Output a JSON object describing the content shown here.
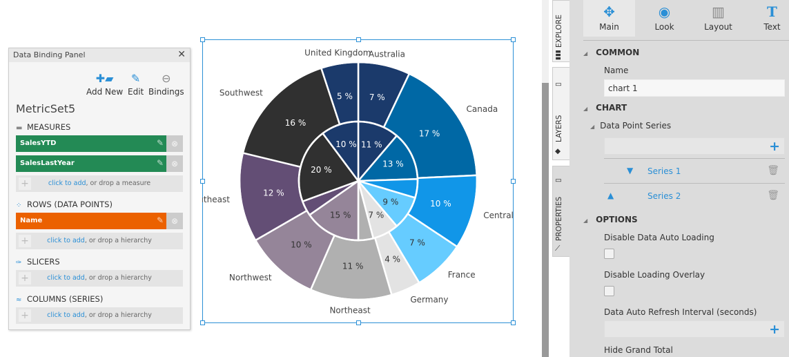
{
  "binding_panel": {
    "title": "Data Binding Panel",
    "toolbar": {
      "add_new": "Add New",
      "edit": "Edit",
      "bindings": "Bindings"
    },
    "metricset": "MetricSet5",
    "measures_label": "MEASURES",
    "measures": [
      "SalesYTD",
      "SalesLastYear"
    ],
    "rows_label": "ROWS (DATA POINTS)",
    "rows": [
      "Name"
    ],
    "slicers_label": "SLICERS",
    "columns_label": "COLUMNS (SERIES)",
    "drop_link": "click to add",
    "drop_measure": ", or drop a measure",
    "drop_hierarchy": ", or drop a hierarchy",
    "colors": {
      "measure": "#238a55",
      "row": "#eb6100"
    }
  },
  "side_tabs": {
    "explore": "EXPLORE",
    "layers": "LAYERS",
    "properties": "PROPERTIES"
  },
  "properties": {
    "tabs": [
      {
        "label": "Main",
        "icon": "puzzle-icon"
      },
      {
        "label": "Look",
        "icon": "eye-brush-icon"
      },
      {
        "label": "Layout",
        "icon": "layout-icon"
      },
      {
        "label": "Text",
        "icon": "text-icon"
      }
    ],
    "common": "COMMON",
    "name_label": "Name",
    "name_value": "chart 1",
    "chart": "CHART",
    "data_point_series": "Data Point Series",
    "series": [
      "Series 1",
      "Series 2"
    ],
    "options": "OPTIONS",
    "disable_auto_loading": "Disable Data Auto Loading",
    "disable_loading_overlay": "Disable Loading Overlay",
    "refresh_interval": "Data Auto Refresh Interval (seconds)",
    "hide_grand_total": "Hide Grand Total"
  },
  "chart_data": {
    "type": "pie",
    "categories": [
      "Australia",
      "Canada",
      "Central",
      "France",
      "Germany",
      "Northeast",
      "Northwest",
      "Southeast",
      "Southwest",
      "United Kingdom"
    ],
    "colors": [
      "#1b3a6b",
      "#0068a5",
      "#1196e8",
      "#66ccff",
      "#e3e3e3",
      "#b0b0b0",
      "#958599",
      "#634e75",
      "#303030",
      "#1b3a6b"
    ],
    "series": [
      {
        "values": [
          7,
          17,
          10,
          7,
          4,
          11,
          10,
          12,
          16,
          5
        ],
        "labels": [
          "7 %",
          "17 %",
          "10 %",
          "7 %",
          "4 %",
          "11 %",
          "10 %",
          "12 %",
          "16 %",
          "5 %"
        ]
      },
      {
        "values": [
          11,
          13,
          5,
          9,
          7,
          4,
          15,
          4,
          20,
          10
        ],
        "labels": [
          "11 %",
          "13 %",
          "",
          "9 %",
          "7 %",
          "",
          "15 %",
          "",
          "20 %",
          "10 %"
        ]
      }
    ]
  }
}
